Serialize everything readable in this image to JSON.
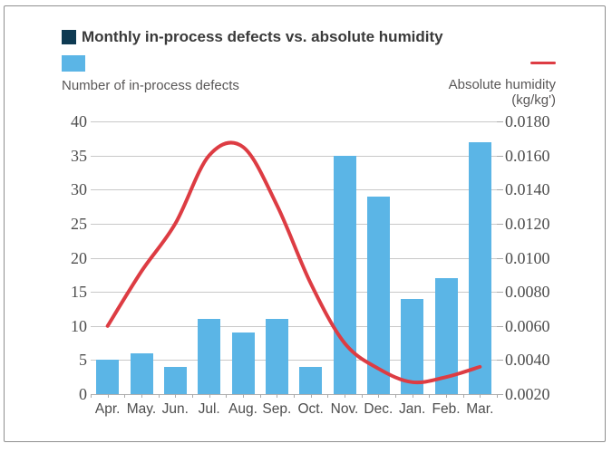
{
  "title": "Monthly in-process defects vs. absolute humidity",
  "legend": {
    "bars_label": "Number of in-process defects",
    "line_label": "Absolute humidity",
    "line_unit": "(kg/kg')"
  },
  "chart_data": {
    "type": "bar",
    "subtype": "bar+line dual axis",
    "title": "Monthly in-process defects vs. absolute humidity",
    "categories": [
      "Apr.",
      "May.",
      "Jun.",
      "Jul.",
      "Aug.",
      "Sep.",
      "Oct.",
      "Nov.",
      "Dec.",
      "Jan.",
      "Feb.",
      "Mar."
    ],
    "series": [
      {
        "name": "Number of in-process defects",
        "type": "bar",
        "axis": "left",
        "values": [
          5,
          6,
          4,
          11,
          9,
          11,
          4,
          35,
          29,
          14,
          17,
          37
        ]
      },
      {
        "name": "Absolute humidity",
        "type": "line",
        "axis": "right",
        "unit": "kg/kg'",
        "values": [
          0.006,
          0.0092,
          0.012,
          0.016,
          0.0165,
          0.0131,
          0.0085,
          0.005,
          0.0035,
          0.0027,
          0.003,
          0.0036
        ]
      }
    ],
    "left_axis": {
      "min": 0,
      "max": 40,
      "step": 5,
      "ticks": [
        0,
        5,
        10,
        15,
        20,
        25,
        30,
        35,
        40
      ]
    },
    "right_axis": {
      "min": 0.002,
      "max": 0.018,
      "step": 0.002,
      "tick_labels": [
        "0.0020",
        "0.0040",
        "0.0060",
        "0.0080",
        "0.0100",
        "0.0120",
        "0.0140",
        "0.0160",
        "0.0180"
      ]
    },
    "grid": true,
    "legend_position": "top",
    "colors": {
      "bar": "#5bb5e6",
      "line": "#dd3c43",
      "title_square": "#0e3a52",
      "grid": "#c8c8c8",
      "baseline": "#b0b0b0",
      "tick": "#aaaaaa",
      "axis_text": "#4d4d4d",
      "legend_text": "#595757",
      "title_text": "#3a3a3a",
      "border": "#8f8f8f"
    }
  }
}
